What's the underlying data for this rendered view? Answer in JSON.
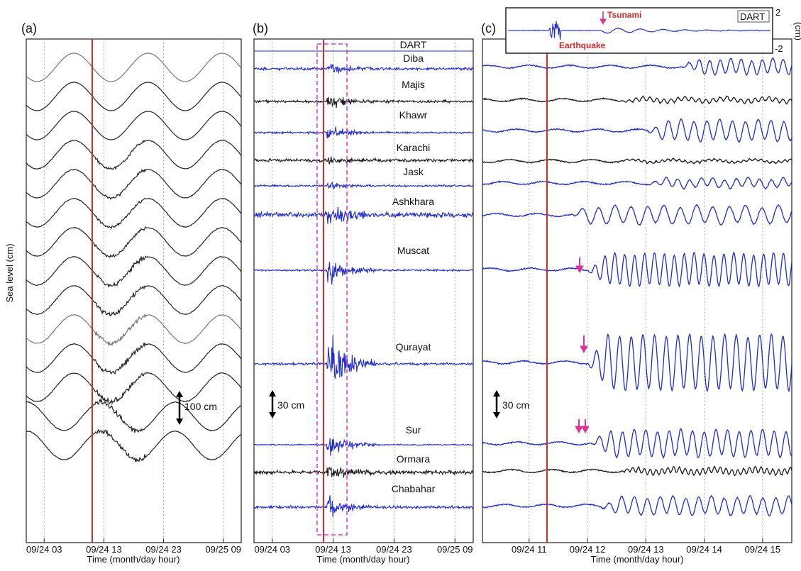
{
  "figure": {
    "ylabel": "Sea level (cm)",
    "colors": {
      "blue": "#1f2bd0",
      "black": "#1a1a1a",
      "gray": "#555555",
      "red": "#d42a2a",
      "magenta": "#e0309a",
      "dashed": "#d33cd3"
    }
  },
  "chart_data": [
    {
      "id": "a",
      "type": "line",
      "panel_label": "(a)",
      "xlabel": "Time (month/day hour)",
      "x_tick_labels": [
        "09/24 03",
        "09/24 13",
        "09/24 23",
        "09/25 09"
      ],
      "x_ticks_hours": [
        3,
        13,
        23,
        33
      ],
      "xlim_hours": [
        0,
        36
      ],
      "earthquake_hour": 11.5,
      "scale_bar": "100 cm",
      "series_count": 14,
      "grid": true
    },
    {
      "id": "b",
      "type": "line",
      "panel_label": "(b)",
      "xlabel": "Time (month/day hour)",
      "x_tick_labels": [
        "09/24 03",
        "09/24 13",
        "09/24 23",
        "09/25 09"
      ],
      "x_ticks_hours": [
        3,
        13,
        23,
        33
      ],
      "xlim_hours": [
        0,
        36
      ],
      "earthquake_hour": 11.5,
      "scale_bar": "30 cm",
      "stations": [
        "DART",
        "Diba",
        "Majis",
        "Khawr",
        "Karachi",
        "Jask",
        "Ashkhara",
        "Muscat",
        "Qurayat",
        "Sur",
        "Ormara",
        "Chabahar"
      ],
      "grid": true
    },
    {
      "id": "c",
      "type": "line",
      "panel_label": "(c)",
      "xlabel": "Time (month/day hour)",
      "x_tick_labels": [
        "09/24 11",
        "09/24 12",
        "09/24 13",
        "09/24 14",
        "09/24 15"
      ],
      "x_ticks_hours": [
        11,
        12,
        13,
        14,
        15
      ],
      "xlim_hours": [
        10.2,
        15.5
      ],
      "earthquake_hour": 11.5,
      "scale_bar": "30 cm",
      "inset": {
        "label": "DART",
        "ylabel": "(cm)",
        "y_tick_labels": [
          "2",
          "-2"
        ],
        "annotations": [
          "Tsunami",
          "Earthquake"
        ]
      },
      "grid": true
    }
  ]
}
